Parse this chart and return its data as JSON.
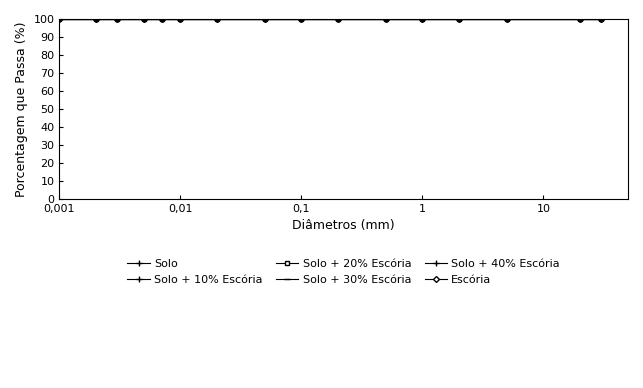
{
  "title": "",
  "xlabel": "Diâmetros (mm)",
  "ylabel": "Porcentagem que Passa (%)",
  "xlim_log": [
    0.001,
    50
  ],
  "ylim": [
    0,
    100
  ],
  "yticks": [
    0,
    10,
    20,
    30,
    40,
    50,
    60,
    70,
    80,
    90,
    100
  ],
  "xtick_labels": [
    "0,001",
    "0,01",
    "0,1",
    "1",
    "10"
  ],
  "xtick_values": [
    0.001,
    0.01,
    0.1,
    1,
    10
  ],
  "background_color": "#ffffff",
  "series": [
    {
      "label": "Solo",
      "color": "#000000",
      "marker": "+",
      "markersize": 5,
      "linewidth": 0.8,
      "x": [
        0.001,
        0.002,
        0.003,
        0.005,
        0.007,
        0.01,
        0.02,
        0.05,
        0.1,
        0.2,
        0.5,
        1.0,
        2.0,
        5.0,
        20.0,
        30.0
      ],
      "y": [
        100,
        100,
        100,
        100,
        100,
        100,
        100,
        100,
        100,
        100,
        100,
        100,
        100,
        100,
        100,
        100
      ]
    },
    {
      "label": "Solo + 10% Escória",
      "color": "#000000",
      "marker": "+",
      "markersize": 5,
      "linewidth": 0.8,
      "x": [
        0.001,
        0.002,
        0.003,
        0.005,
        0.007,
        0.01,
        0.02,
        0.05,
        0.1,
        0.2,
        0.5,
        1.0,
        2.0,
        5.0,
        20.0,
        30.0
      ],
      "y": [
        100,
        100,
        100,
        100,
        100,
        100,
        100,
        100,
        100,
        100,
        100,
        100,
        100,
        100,
        100,
        100
      ]
    },
    {
      "label": "Solo + 20% Escória",
      "color": "#000000",
      "marker": "s",
      "markersize": 3,
      "linewidth": 0.8,
      "x": [
        0.001,
        0.002,
        0.003,
        0.005,
        0.007,
        0.01,
        0.02,
        0.05,
        0.1,
        0.2,
        0.5,
        1.0,
        2.0,
        5.0,
        20.0,
        30.0
      ],
      "y": [
        100,
        100,
        100,
        100,
        100,
        100,
        100,
        100,
        100,
        100,
        100,
        100,
        100,
        100,
        100,
        100
      ]
    },
    {
      "label": "Solo + 30% Escória",
      "color": "#000000",
      "marker": "_",
      "markersize": 5,
      "linewidth": 0.8,
      "x": [
        0.001,
        0.002,
        0.003,
        0.005,
        0.007,
        0.01,
        0.02,
        0.05,
        0.1,
        0.2,
        0.5,
        1.0,
        2.0,
        5.0,
        20.0,
        30.0
      ],
      "y": [
        100,
        100,
        100,
        100,
        100,
        100,
        100,
        100,
        100,
        100,
        100,
        100,
        100,
        100,
        100,
        100
      ]
    },
    {
      "label": "Solo + 40% Escória",
      "color": "#000000",
      "marker": "+",
      "markersize": 5,
      "linewidth": 0.8,
      "x": [
        0.001,
        0.002,
        0.003,
        0.005,
        0.007,
        0.01,
        0.02,
        0.05,
        0.1,
        0.2,
        0.5,
        1.0,
        2.0,
        5.0,
        20.0,
        30.0
      ],
      "y": [
        100,
        100,
        100,
        100,
        100,
        100,
        100,
        100,
        100,
        100,
        100,
        100,
        100,
        100,
        100,
        100
      ]
    },
    {
      "label": "Escória",
      "color": "#000000",
      "marker": "D",
      "markersize": 3,
      "linewidth": 0.8,
      "x": [
        0.001,
        0.002,
        0.003,
        0.005,
        0.007,
        0.01,
        0.02,
        0.05,
        0.1,
        0.2,
        0.5,
        1.0,
        2.0,
        5.0,
        20.0,
        30.0
      ],
      "y": [
        100,
        100,
        100,
        100,
        100,
        100,
        100,
        100,
        100,
        100,
        100,
        100,
        100,
        100,
        100,
        100
      ]
    }
  ],
  "fontsize_axis_label": 9,
  "fontsize_tick": 8,
  "fontsize_legend": 8
}
